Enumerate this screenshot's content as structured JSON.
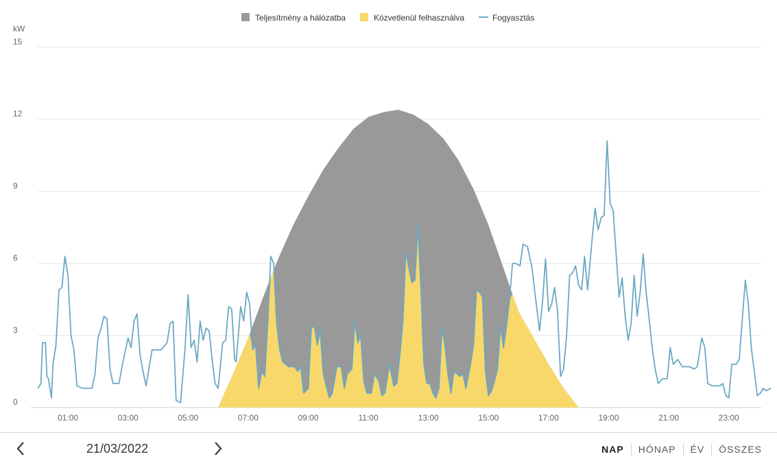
{
  "chart_data": {
    "type": "area",
    "unit_label": "kW",
    "ylim": [
      0,
      15
    ],
    "y_ticks": [
      0,
      3,
      6,
      9,
      12,
      15
    ],
    "x_range_hours": [
      0,
      24
    ],
    "x_ticks": [
      "01:00",
      "03:00",
      "05:00",
      "07:00",
      "09:00",
      "11:00",
      "13:00",
      "15:00",
      "17:00",
      "19:00",
      "21:00",
      "23:00"
    ],
    "legend_position": "top-center",
    "grid": true,
    "legend": [
      {
        "name": "Teljesítmény a hálózatba",
        "color": "#999999",
        "marker": "square"
      },
      {
        "name": "Közvetlenül felhasználva",
        "color": "#f8d86a",
        "marker": "square"
      },
      {
        "name": "Fogyasztás",
        "color": "#6aa8c4",
        "marker": "line"
      }
    ],
    "production": [
      [
        6.0,
        0
      ],
      [
        6.5,
        1.4
      ],
      [
        7.0,
        2.9
      ],
      [
        7.5,
        4.6
      ],
      [
        8.0,
        6.2
      ],
      [
        8.5,
        7.6
      ],
      [
        9.0,
        8.8
      ],
      [
        9.5,
        9.9
      ],
      [
        10.0,
        10.8
      ],
      [
        10.5,
        11.6
      ],
      [
        11.0,
        12.1
      ],
      [
        11.5,
        12.3
      ],
      [
        12.0,
        12.4
      ],
      [
        12.5,
        12.2
      ],
      [
        13.0,
        11.8
      ],
      [
        13.5,
        11.2
      ],
      [
        14.0,
        10.3
      ],
      [
        14.5,
        9.1
      ],
      [
        15.0,
        7.6
      ],
      [
        15.5,
        5.8
      ],
      [
        16.0,
        4.0
      ],
      [
        16.5,
        2.9
      ],
      [
        17.0,
        1.8
      ],
      [
        17.5,
        0.8
      ],
      [
        18.0,
        0
      ]
    ],
    "consumption": [
      [
        0.0,
        0.8
      ],
      [
        0.1,
        1.0
      ],
      [
        0.15,
        2.7
      ],
      [
        0.25,
        2.7
      ],
      [
        0.3,
        1.3
      ],
      [
        0.35,
        1.2
      ],
      [
        0.45,
        0.4
      ],
      [
        0.5,
        1.8
      ],
      [
        0.6,
        2.6
      ],
      [
        0.7,
        4.9
      ],
      [
        0.8,
        5.0
      ],
      [
        0.9,
        6.3
      ],
      [
        1.0,
        5.5
      ],
      [
        1.1,
        3.0
      ],
      [
        1.2,
        2.4
      ],
      [
        1.3,
        0.9
      ],
      [
        1.5,
        0.8
      ],
      [
        1.8,
        0.8
      ],
      [
        1.9,
        1.4
      ],
      [
        2.0,
        2.9
      ],
      [
        2.1,
        3.3
      ],
      [
        2.2,
        3.8
      ],
      [
        2.3,
        3.7
      ],
      [
        2.4,
        1.6
      ],
      [
        2.5,
        1.0
      ],
      [
        2.7,
        1.0
      ],
      [
        2.8,
        1.7
      ],
      [
        2.9,
        2.3
      ],
      [
        3.0,
        2.9
      ],
      [
        3.1,
        2.5
      ],
      [
        3.2,
        3.6
      ],
      [
        3.3,
        3.9
      ],
      [
        3.4,
        2.2
      ],
      [
        3.5,
        1.5
      ],
      [
        3.6,
        0.9
      ],
      [
        3.8,
        2.4
      ],
      [
        4.1,
        2.4
      ],
      [
        4.3,
        2.7
      ],
      [
        4.4,
        3.5
      ],
      [
        4.5,
        3.6
      ],
      [
        4.6,
        0.3
      ],
      [
        4.75,
        0.2
      ],
      [
        4.9,
        2.5
      ],
      [
        5.0,
        4.7
      ],
      [
        5.1,
        2.5
      ],
      [
        5.2,
        2.8
      ],
      [
        5.3,
        1.9
      ],
      [
        5.4,
        3.6
      ],
      [
        5.5,
        2.8
      ],
      [
        5.6,
        3.3
      ],
      [
        5.7,
        3.2
      ],
      [
        5.8,
        2.0
      ],
      [
        5.9,
        1.0
      ],
      [
        6.0,
        0.8
      ],
      [
        6.15,
        2.7
      ],
      [
        6.25,
        2.8
      ],
      [
        6.35,
        4.2
      ],
      [
        6.45,
        4.1
      ],
      [
        6.55,
        2.0
      ],
      [
        6.6,
        1.9
      ],
      [
        6.75,
        4.2
      ],
      [
        6.85,
        3.6
      ],
      [
        6.95,
        4.8
      ],
      [
        7.05,
        4.3
      ],
      [
        7.15,
        2.4
      ],
      [
        7.25,
        2.6
      ],
      [
        7.35,
        0.8
      ],
      [
        7.45,
        1.5
      ],
      [
        7.55,
        1.3
      ],
      [
        7.65,
        3.5
      ],
      [
        7.75,
        6.3
      ],
      [
        7.85,
        6.0
      ],
      [
        7.95,
        3.5
      ],
      [
        8.05,
        2.4
      ],
      [
        8.15,
        1.9
      ],
      [
        8.35,
        1.7
      ],
      [
        8.55,
        1.7
      ],
      [
        8.65,
        1.5
      ],
      [
        8.75,
        1.7
      ],
      [
        8.85,
        0.6
      ],
      [
        9.0,
        0.8
      ],
      [
        9.1,
        3.3
      ],
      [
        9.2,
        3.4
      ],
      [
        9.3,
        2.6
      ],
      [
        9.4,
        3.2
      ],
      [
        9.5,
        1.4
      ],
      [
        9.6,
        0.9
      ],
      [
        9.7,
        0.4
      ],
      [
        9.8,
        0.6
      ],
      [
        9.95,
        1.7
      ],
      [
        10.1,
        1.7
      ],
      [
        10.2,
        0.8
      ],
      [
        10.3,
        1.4
      ],
      [
        10.45,
        1.6
      ],
      [
        10.55,
        3.6
      ],
      [
        10.65,
        2.7
      ],
      [
        10.75,
        3.0
      ],
      [
        10.85,
        1.1
      ],
      [
        10.95,
        0.6
      ],
      [
        11.1,
        0.6
      ],
      [
        11.2,
        1.4
      ],
      [
        11.35,
        1.1
      ],
      [
        11.45,
        0.5
      ],
      [
        11.55,
        0.6
      ],
      [
        11.7,
        1.8
      ],
      [
        11.85,
        0.9
      ],
      [
        11.95,
        1.0
      ],
      [
        12.05,
        2.2
      ],
      [
        12.15,
        3.6
      ],
      [
        12.25,
        6.5
      ],
      [
        12.35,
        5.8
      ],
      [
        12.45,
        5.2
      ],
      [
        12.55,
        5.3
      ],
      [
        12.65,
        7.6
      ],
      [
        12.75,
        5.0
      ],
      [
        12.85,
        1.8
      ],
      [
        12.95,
        1.0
      ],
      [
        13.05,
        1.0
      ],
      [
        13.15,
        0.6
      ],
      [
        13.25,
        0.4
      ],
      [
        13.35,
        0.8
      ],
      [
        13.45,
        3.3
      ],
      [
        13.55,
        2.6
      ],
      [
        13.65,
        1.4
      ],
      [
        13.75,
        0.6
      ],
      [
        13.85,
        1.5
      ],
      [
        13.95,
        1.4
      ],
      [
        14.05,
        1.3
      ],
      [
        14.15,
        1.4
      ],
      [
        14.25,
        0.8
      ],
      [
        14.4,
        1.8
      ],
      [
        14.5,
        2.6
      ],
      [
        14.6,
        4.9
      ],
      [
        14.7,
        4.8
      ],
      [
        14.8,
        4.6
      ],
      [
        14.9,
        1.5
      ],
      [
        15.0,
        0.5
      ],
      [
        15.1,
        0.7
      ],
      [
        15.2,
        1.1
      ],
      [
        15.3,
        1.6
      ],
      [
        15.4,
        3.4
      ],
      [
        15.5,
        2.5
      ],
      [
        15.6,
        3.4
      ],
      [
        15.7,
        4.5
      ],
      [
        15.8,
        6.0
      ],
      [
        15.9,
        6.0
      ],
      [
        16.05,
        5.9
      ],
      [
        16.15,
        6.8
      ],
      [
        16.3,
        6.7
      ],
      [
        16.45,
        5.8
      ],
      [
        16.6,
        4.2
      ],
      [
        16.7,
        3.2
      ],
      [
        16.8,
        4.4
      ],
      [
        16.9,
        6.2
      ],
      [
        17.0,
        4.0
      ],
      [
        17.1,
        4.3
      ],
      [
        17.2,
        5.0
      ],
      [
        17.3,
        4.0
      ],
      [
        17.4,
        1.3
      ],
      [
        17.5,
        1.6
      ],
      [
        17.6,
        3.0
      ],
      [
        17.7,
        5.5
      ],
      [
        17.8,
        5.6
      ],
      [
        17.9,
        5.9
      ],
      [
        18.0,
        5.1
      ],
      [
        18.1,
        4.9
      ],
      [
        18.2,
        6.3
      ],
      [
        18.3,
        4.9
      ],
      [
        18.45,
        7.0
      ],
      [
        18.55,
        8.3
      ],
      [
        18.65,
        7.4
      ],
      [
        18.75,
        7.9
      ],
      [
        18.85,
        8.0
      ],
      [
        18.95,
        11.1
      ],
      [
        19.05,
        8.5
      ],
      [
        19.15,
        8.2
      ],
      [
        19.25,
        6.4
      ],
      [
        19.35,
        4.6
      ],
      [
        19.45,
        5.4
      ],
      [
        19.55,
        3.8
      ],
      [
        19.65,
        2.8
      ],
      [
        19.75,
        3.5
      ],
      [
        19.85,
        5.5
      ],
      [
        19.95,
        3.8
      ],
      [
        20.05,
        4.8
      ],
      [
        20.15,
        6.4
      ],
      [
        20.25,
        4.8
      ],
      [
        20.35,
        3.7
      ],
      [
        20.45,
        2.5
      ],
      [
        20.55,
        1.6
      ],
      [
        20.65,
        1.0
      ],
      [
        20.8,
        1.2
      ],
      [
        20.95,
        1.2
      ],
      [
        21.05,
        2.5
      ],
      [
        21.15,
        1.8
      ],
      [
        21.3,
        2.0
      ],
      [
        21.45,
        1.7
      ],
      [
        21.7,
        1.7
      ],
      [
        21.85,
        1.6
      ],
      [
        21.95,
        1.7
      ],
      [
        22.1,
        2.9
      ],
      [
        22.2,
        2.5
      ],
      [
        22.3,
        1.0
      ],
      [
        22.45,
        0.9
      ],
      [
        22.7,
        0.9
      ],
      [
        22.8,
        1.0
      ],
      [
        22.9,
        0.5
      ],
      [
        23.0,
        0.4
      ],
      [
        23.1,
        1.8
      ],
      [
        23.25,
        1.8
      ],
      [
        23.35,
        2.0
      ],
      [
        23.45,
        3.7
      ],
      [
        23.55,
        5.3
      ],
      [
        23.65,
        4.3
      ],
      [
        23.75,
        2.5
      ],
      [
        23.85,
        1.5
      ],
      [
        23.95,
        0.5
      ],
      [
        24.05,
        0.6
      ],
      [
        24.15,
        0.8
      ],
      [
        24.25,
        0.7
      ],
      [
        24.4,
        0.8
      ]
    ]
  },
  "footer": {
    "prev_label": "‹",
    "next_label": "›",
    "date": "21/03/2022",
    "periods": [
      "NAP",
      "HÓNAP",
      "ÉV",
      "ÖSSZES"
    ],
    "active_period": "NAP"
  }
}
